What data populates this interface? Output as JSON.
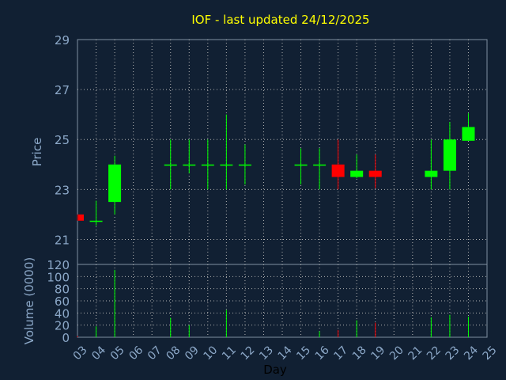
{
  "chart_data": {
    "type": "candlestick",
    "title": "IOF - last updated 24/12/2025",
    "xlabel": "Day",
    "price_panel": {
      "ylabel": "Price",
      "ylim": [
        20,
        29
      ],
      "yticks": [
        "21",
        "23",
        "25",
        "27",
        "29"
      ]
    },
    "volume_panel": {
      "ylabel": "Volume (0000)",
      "ylim": [
        0,
        120
      ],
      "yticks": [
        "0",
        "20",
        "40",
        "60",
        "80",
        "100",
        "120"
      ]
    },
    "x_ticks": [
      "03",
      "04",
      "05",
      "06",
      "07",
      "08",
      "09",
      "10",
      "11",
      "12",
      "13",
      "14",
      "15",
      "16",
      "17",
      "18",
      "19",
      "20",
      "21",
      "22",
      "23",
      "24",
      "25"
    ],
    "grid": true,
    "candles": [
      {
        "day": 3,
        "open": 22.0,
        "high": 22.0,
        "low": 21.75,
        "close": 21.75,
        "volume": 2
      },
      {
        "day": 4,
        "open": 21.75,
        "high": 22.55,
        "low": 21.55,
        "close": 21.75,
        "volume": 18
      },
      {
        "day": 5,
        "open": 22.5,
        "high": 24.35,
        "low": 22.0,
        "close": 24.0,
        "volume": 111
      },
      {
        "day": 8,
        "open": 24.0,
        "high": 25.0,
        "low": 23.0,
        "close": 24.0,
        "volume": 32
      },
      {
        "day": 9,
        "open": 24.0,
        "high": 25.0,
        "low": 23.65,
        "close": 24.0,
        "volume": 20
      },
      {
        "day": 10,
        "open": 24.0,
        "high": 25.0,
        "low": 23.0,
        "close": 24.0,
        "volume": 0
      },
      {
        "day": 11,
        "open": 24.0,
        "high": 26.0,
        "low": 23.0,
        "close": 24.0,
        "volume": 45
      },
      {
        "day": 12,
        "open": 24.0,
        "high": 24.8,
        "low": 23.2,
        "close": 24.0,
        "volume": 0
      },
      {
        "day": 15,
        "open": 24.0,
        "high": 24.65,
        "low": 23.2,
        "close": 24.0,
        "volume": 0
      },
      {
        "day": 16,
        "open": 24.0,
        "high": 24.65,
        "low": 23.0,
        "close": 24.0,
        "volume": 10
      },
      {
        "day": 17,
        "open": 24.0,
        "high": 25.0,
        "low": 23.0,
        "close": 23.5,
        "volume": 12
      },
      {
        "day": 18,
        "open": 23.5,
        "high": 24.4,
        "low": 23.45,
        "close": 23.75,
        "volume": 28
      },
      {
        "day": 19,
        "open": 23.75,
        "high": 24.4,
        "low": 23.05,
        "close": 23.5,
        "volume": 24
      },
      {
        "day": 22,
        "open": 23.5,
        "high": 25.0,
        "low": 23.0,
        "close": 23.75,
        "volume": 33
      },
      {
        "day": 23,
        "open": 23.75,
        "high": 25.7,
        "low": 23.0,
        "close": 25.0,
        "volume": 37
      },
      {
        "day": 24,
        "open": 24.95,
        "high": 26.05,
        "low": 24.95,
        "close": 25.5,
        "volume": 34
      }
    ]
  },
  "colors": {
    "background": "#112033",
    "title": "#ffff00",
    "axis_text": "#8ca8c8",
    "grid": "#b0b0b0",
    "up": "#00ff00",
    "down": "#ff0000"
  }
}
